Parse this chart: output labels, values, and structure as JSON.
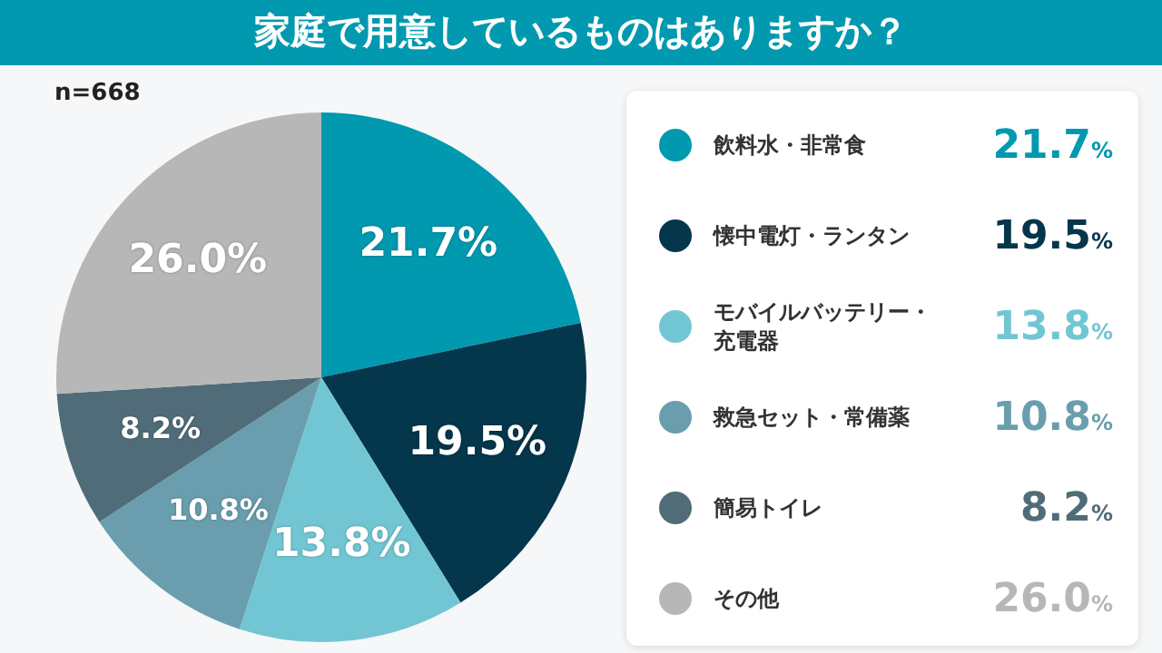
{
  "chart_data": {
    "type": "pie",
    "title": "家庭で用意しているものはありますか？",
    "annotations": [
      "n=668"
    ],
    "categories": [
      "飲料水・非常食",
      "懐中電灯・ランタン",
      "モバイルバッテリー・充電器",
      "救急セット・常備薬",
      "簡易トイレ",
      "その他"
    ],
    "values": [
      21.7,
      19.5,
      13.8,
      10.8,
      8.2,
      26.0
    ],
    "value_labels": [
      "21.7%",
      "19.5%",
      "13.8%",
      "10.8%",
      "8.2%",
      "26.0%"
    ],
    "colors": [
      "#0099b0",
      "#04364c",
      "#72c6d3",
      "#6a9eae",
      "#516c79",
      "#b7b7b7"
    ],
    "legend": "right"
  }
}
